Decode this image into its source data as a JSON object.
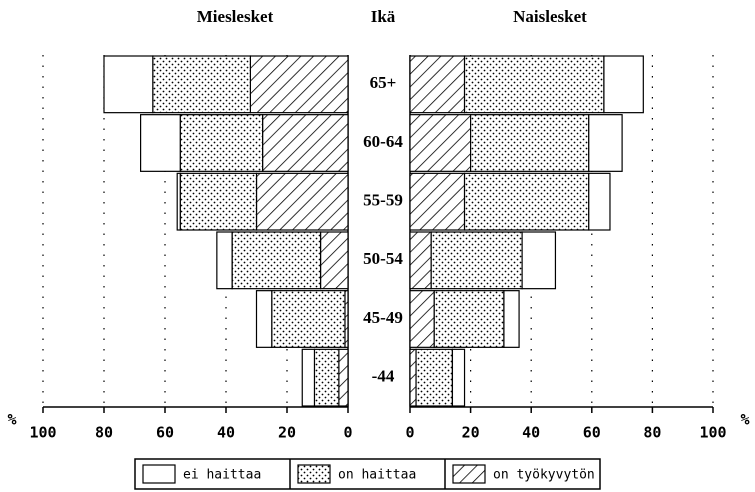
{
  "chart_data": {
    "type": "population-pyramid",
    "y_label": "Ikä",
    "categories": [
      "65+",
      "60-64",
      "55-59",
      "50-54",
      "45-49",
      "-44"
    ],
    "series": [
      {
        "name": "ei haittaa",
        "pattern": "none",
        "color": "#000000"
      },
      {
        "name": "on haittaa",
        "pattern": "dots",
        "color": "#000000"
      },
      {
        "name": "on työkyvytön",
        "pattern": "hatch",
        "color": "#000000"
      }
    ],
    "grid": true,
    "panels": [
      {
        "title": "Mieslesket",
        "x_label": "%",
        "direction": "left",
        "xlim": [
          0,
          100
        ],
        "xticks": [
          0,
          20,
          40,
          60,
          80,
          100
        ],
        "values": [
          [
            16,
            13,
            1,
            5,
            5,
            4
          ],
          [
            32,
            27,
            25,
            29,
            24,
            8
          ],
          [
            32,
            28,
            30,
            9,
            1,
            3
          ]
        ]
      },
      {
        "title": "Naislesket",
        "x_label": "%",
        "direction": "right",
        "xlim": [
          0,
          100
        ],
        "xticks": [
          0,
          20,
          40,
          60,
          80,
          100
        ],
        "values": [
          [
            13,
            11,
            7,
            11,
            5,
            4
          ],
          [
            46,
            39,
            41,
            30,
            23,
            12
          ],
          [
            18,
            20,
            18,
            7,
            8,
            2
          ]
        ]
      }
    ]
  }
}
